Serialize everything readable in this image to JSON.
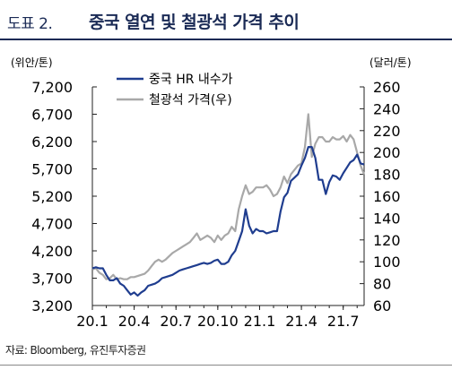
{
  "header": {
    "figure_label": "도표 2.",
    "title": "중국 열연 및 철광석 가격 추이"
  },
  "source": "자료: Bloomberg, 유진투자증권",
  "chart_data": {
    "type": "line",
    "left_axis_unit": "(위안/톤)",
    "right_axis_unit": "(달러/톤)",
    "left_ticks": [
      "7,200",
      "6,700",
      "6,200",
      "5,700",
      "5,200",
      "4,700",
      "4,200",
      "3,700",
      "3,200"
    ],
    "right_ticks": [
      "260",
      "240",
      "220",
      "200",
      "180",
      "160",
      "140",
      "120",
      "100",
      "80",
      "60"
    ],
    "x_ticks": [
      "20.1",
      "20.4",
      "20.7",
      "20.10",
      "21.1",
      "21.4",
      "21.7"
    ],
    "left_ylim": [
      3200,
      7200
    ],
    "right_ylim": [
      60,
      260
    ],
    "series": [
      {
        "name": "중국 HR 내수가",
        "axis": "left",
        "color": "#1f3d8f",
        "points": [
          [
            0.0,
            3880
          ],
          [
            0.25,
            3900
          ],
          [
            0.5,
            3880
          ],
          [
            0.75,
            3880
          ],
          [
            1.0,
            3760
          ],
          [
            1.25,
            3660
          ],
          [
            1.5,
            3660
          ],
          [
            1.75,
            3700
          ],
          [
            2.0,
            3600
          ],
          [
            2.25,
            3560
          ],
          [
            2.5,
            3480
          ],
          [
            2.75,
            3400
          ],
          [
            3.0,
            3440
          ],
          [
            3.25,
            3380
          ],
          [
            3.5,
            3440
          ],
          [
            3.75,
            3480
          ],
          [
            4.0,
            3560
          ],
          [
            4.25,
            3580
          ],
          [
            4.5,
            3600
          ],
          [
            4.75,
            3640
          ],
          [
            5.0,
            3700
          ],
          [
            5.25,
            3720
          ],
          [
            5.5,
            3740
          ],
          [
            5.75,
            3760
          ],
          [
            6.0,
            3800
          ],
          [
            6.25,
            3840
          ],
          [
            6.5,
            3860
          ],
          [
            6.75,
            3880
          ],
          [
            7.0,
            3900
          ],
          [
            7.25,
            3920
          ],
          [
            7.5,
            3940
          ],
          [
            7.75,
            3960
          ],
          [
            8.0,
            3980
          ],
          [
            8.25,
            3960
          ],
          [
            8.5,
            3980
          ],
          [
            8.75,
            4020
          ],
          [
            9.0,
            4040
          ],
          [
            9.25,
            3960
          ],
          [
            9.5,
            3960
          ],
          [
            9.75,
            4000
          ],
          [
            10.0,
            4120
          ],
          [
            10.25,
            4200
          ],
          [
            10.5,
            4380
          ],
          [
            10.75,
            4560
          ],
          [
            11.0,
            4960
          ],
          [
            11.25,
            4660
          ],
          [
            11.5,
            4520
          ],
          [
            11.75,
            4600
          ],
          [
            12.0,
            4560
          ],
          [
            12.25,
            4560
          ],
          [
            12.5,
            4520
          ],
          [
            12.75,
            4540
          ],
          [
            13.0,
            4560
          ],
          [
            13.25,
            4560
          ],
          [
            13.5,
            4920
          ],
          [
            13.75,
            5180
          ],
          [
            14.0,
            5260
          ],
          [
            14.25,
            5480
          ],
          [
            14.5,
            5540
          ],
          [
            14.75,
            5600
          ],
          [
            15.0,
            5760
          ],
          [
            15.25,
            5900
          ],
          [
            15.5,
            6100
          ],
          [
            15.75,
            6100
          ],
          [
            16.0,
            5900
          ],
          [
            16.25,
            5500
          ],
          [
            16.5,
            5500
          ],
          [
            16.75,
            5240
          ],
          [
            17.0,
            5460
          ],
          [
            17.25,
            5580
          ],
          [
            17.5,
            5560
          ],
          [
            17.75,
            5500
          ],
          [
            18.0,
            5620
          ],
          [
            18.25,
            5720
          ],
          [
            18.5,
            5820
          ],
          [
            18.75,
            5860
          ],
          [
            19.0,
            5960
          ],
          [
            19.25,
            5800
          ],
          [
            19.5,
            5780
          ]
        ]
      },
      {
        "name": "철광석 가격(우)",
        "axis": "right",
        "color": "#a8a8a8",
        "points": [
          [
            0.0,
            93
          ],
          [
            0.25,
            94
          ],
          [
            0.5,
            90
          ],
          [
            0.75,
            88
          ],
          [
            1.0,
            84
          ],
          [
            1.25,
            85
          ],
          [
            1.5,
            88
          ],
          [
            1.75,
            84
          ],
          [
            2.0,
            85
          ],
          [
            2.25,
            84
          ],
          [
            2.5,
            84
          ],
          [
            2.75,
            86
          ],
          [
            3.0,
            86
          ],
          [
            3.25,
            87
          ],
          [
            3.5,
            88
          ],
          [
            3.75,
            89
          ],
          [
            4.0,
            92
          ],
          [
            4.25,
            96
          ],
          [
            4.5,
            100
          ],
          [
            4.75,
            102
          ],
          [
            5.0,
            100
          ],
          [
            5.25,
            102
          ],
          [
            5.5,
            105
          ],
          [
            5.75,
            108
          ],
          [
            6.0,
            110
          ],
          [
            6.25,
            112
          ],
          [
            6.5,
            114
          ],
          [
            6.75,
            116
          ],
          [
            7.0,
            118
          ],
          [
            7.25,
            122
          ],
          [
            7.5,
            126
          ],
          [
            7.75,
            120
          ],
          [
            8.0,
            122
          ],
          [
            8.25,
            124
          ],
          [
            8.5,
            122
          ],
          [
            8.75,
            118
          ],
          [
            9.0,
            124
          ],
          [
            9.25,
            120
          ],
          [
            9.5,
            124
          ],
          [
            9.75,
            126
          ],
          [
            10.0,
            132
          ],
          [
            10.25,
            128
          ],
          [
            10.5,
            148
          ],
          [
            10.75,
            160
          ],
          [
            11.0,
            170
          ],
          [
            11.25,
            162
          ],
          [
            11.5,
            164
          ],
          [
            11.75,
            168
          ],
          [
            12.0,
            168
          ],
          [
            12.25,
            168
          ],
          [
            12.5,
            170
          ],
          [
            12.75,
            166
          ],
          [
            13.0,
            160
          ],
          [
            13.25,
            162
          ],
          [
            13.5,
            168
          ],
          [
            13.75,
            178
          ],
          [
            14.0,
            172
          ],
          [
            14.25,
            180
          ],
          [
            14.5,
            184
          ],
          [
            14.75,
            188
          ],
          [
            15.0,
            190
          ],
          [
            15.25,
            205
          ],
          [
            15.5,
            235
          ],
          [
            15.75,
            196
          ],
          [
            16.0,
            208
          ],
          [
            16.25,
            214
          ],
          [
            16.5,
            214
          ],
          [
            16.75,
            210
          ],
          [
            17.0,
            210
          ],
          [
            17.25,
            214
          ],
          [
            17.5,
            212
          ],
          [
            17.75,
            212
          ],
          [
            18.0,
            215
          ],
          [
            18.25,
            210
          ],
          [
            18.5,
            216
          ],
          [
            18.75,
            212
          ],
          [
            19.0,
            200
          ],
          [
            19.25,
            188
          ],
          [
            19.5,
            180
          ]
        ]
      }
    ]
  }
}
